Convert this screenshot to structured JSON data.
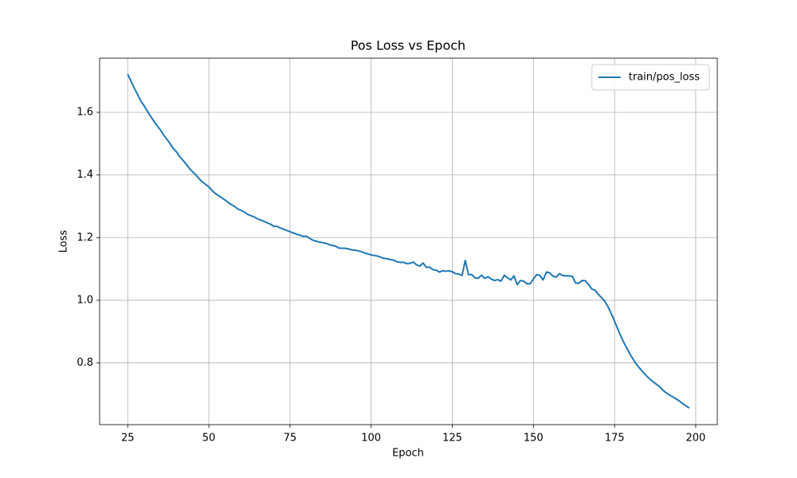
{
  "chart_data": {
    "type": "line",
    "title": "Pos Loss vs Epoch",
    "x_label": "Epoch",
    "y_label": "Loss",
    "x": [
      25,
      26,
      27,
      28,
      29,
      30,
      31,
      32,
      33,
      34,
      35,
      36,
      37,
      38,
      39,
      40,
      41,
      42,
      43,
      44,
      45,
      46,
      47,
      48,
      49,
      50,
      51,
      52,
      53,
      54,
      55,
      56,
      57,
      58,
      59,
      60,
      61,
      62,
      63,
      64,
      65,
      66,
      67,
      68,
      69,
      70,
      71,
      72,
      73,
      74,
      75,
      76,
      77,
      78,
      79,
      80,
      81,
      82,
      83,
      84,
      85,
      86,
      87,
      88,
      89,
      90,
      91,
      92,
      93,
      94,
      95,
      96,
      97,
      98,
      99,
      100,
      101,
      102,
      103,
      104,
      105,
      106,
      107,
      108,
      109,
      110,
      111,
      112,
      113,
      114,
      115,
      116,
      117,
      118,
      119,
      120,
      121,
      122,
      123,
      124,
      125,
      126,
      127,
      128,
      129,
      130,
      131,
      132,
      133,
      134,
      135,
      136,
      137,
      138,
      139,
      140,
      141,
      142,
      143,
      144,
      145,
      146,
      147,
      148,
      149,
      150,
      151,
      152,
      153,
      154,
      155,
      156,
      157,
      158,
      159,
      160,
      161,
      162,
      163,
      164,
      165,
      166,
      167,
      168,
      169,
      170,
      171,
      172,
      173,
      174,
      175,
      176,
      177,
      178,
      179,
      180,
      181,
      182,
      183,
      184,
      185,
      186,
      187,
      188,
      189,
      190,
      191,
      192,
      193,
      194,
      195,
      196,
      197,
      198
    ],
    "series": [
      {
        "name": "train/pos_loss",
        "color": "#1f77b4",
        "values": [
          1.722,
          1.7,
          1.678,
          1.658,
          1.637,
          1.622,
          1.605,
          1.588,
          1.573,
          1.558,
          1.545,
          1.529,
          1.515,
          1.501,
          1.485,
          1.474,
          1.459,
          1.447,
          1.435,
          1.421,
          1.41,
          1.4,
          1.388,
          1.378,
          1.37,
          1.362,
          1.35,
          1.341,
          1.334,
          1.327,
          1.32,
          1.312,
          1.305,
          1.299,
          1.291,
          1.287,
          1.281,
          1.274,
          1.27,
          1.266,
          1.26,
          1.256,
          1.252,
          1.247,
          1.243,
          1.236,
          1.236,
          1.231,
          1.227,
          1.223,
          1.219,
          1.215,
          1.211,
          1.208,
          1.204,
          1.205,
          1.198,
          1.192,
          1.189,
          1.186,
          1.184,
          1.182,
          1.178,
          1.175,
          1.173,
          1.167,
          1.166,
          1.166,
          1.164,
          1.161,
          1.16,
          1.158,
          1.155,
          1.151,
          1.148,
          1.145,
          1.143,
          1.141,
          1.137,
          1.134,
          1.132,
          1.13,
          1.128,
          1.123,
          1.121,
          1.121,
          1.117,
          1.118,
          1.122,
          1.113,
          1.109,
          1.119,
          1.105,
          1.106,
          1.098,
          1.096,
          1.09,
          1.094,
          1.093,
          1.094,
          1.091,
          1.085,
          1.084,
          1.079,
          1.127,
          1.082,
          1.082,
          1.072,
          1.07,
          1.08,
          1.07,
          1.075,
          1.068,
          1.063,
          1.066,
          1.061,
          1.08,
          1.072,
          1.065,
          1.078,
          1.05,
          1.063,
          1.061,
          1.053,
          1.053,
          1.068,
          1.082,
          1.079,
          1.065,
          1.09,
          1.088,
          1.077,
          1.074,
          1.085,
          1.079,
          1.078,
          1.078,
          1.076,
          1.055,
          1.054,
          1.063,
          1.062,
          1.05,
          1.036,
          1.032,
          1.019,
          1.008,
          0.997,
          0.979,
          0.957,
          0.933,
          0.908,
          0.884,
          0.862,
          0.843,
          0.824,
          0.807,
          0.792,
          0.78,
          0.768,
          0.757,
          0.747,
          0.739,
          0.731,
          0.723,
          0.712,
          0.704,
          0.697,
          0.691,
          0.685,
          0.678,
          0.67,
          0.663,
          0.656
        ]
      }
    ],
    "xlim": [
      16.35,
      206.65
    ],
    "ylim": [
      0.603,
      1.773
    ],
    "xticks": [
      25,
      50,
      75,
      100,
      125,
      150,
      175,
      200
    ],
    "yticks": [
      0.8,
      {
        "value": 1,
        "label": "1.0"
      },
      1.2,
      1.4,
      1.6
    ],
    "grid": true,
    "legend": "upper right"
  }
}
